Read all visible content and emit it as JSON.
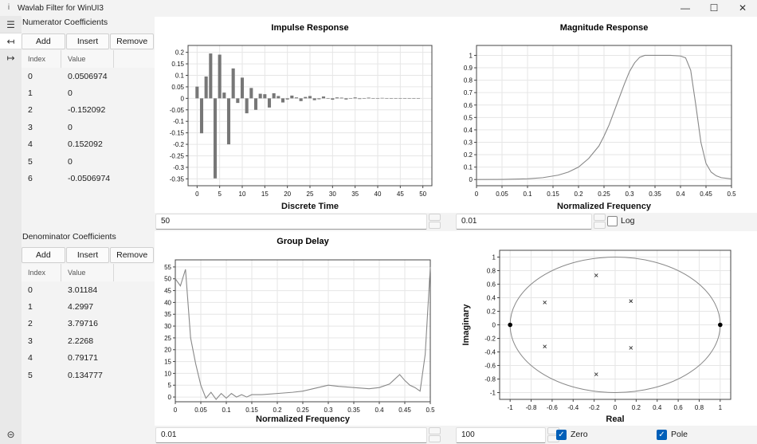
{
  "window": {
    "title": "Wavlab Filter for WinUI3",
    "controls": [
      "minimize",
      "maximize",
      "close"
    ]
  },
  "nav": {
    "items": [
      {
        "icon": "menu-icon",
        "glyph": "☰"
      },
      {
        "icon": "arrow-left-bar-icon",
        "glyph": "↤"
      },
      {
        "icon": "arrow-right-bar-icon",
        "glyph": "↦"
      }
    ],
    "bottom": {
      "icon": "link-icon",
      "glyph": "⊝"
    }
  },
  "numerator": {
    "title": "Numerator Coefficients",
    "buttons": {
      "add": "Add",
      "insert": "Insert",
      "remove": "Remove"
    },
    "columns": [
      "Index",
      "Value"
    ],
    "rows": [
      [
        "0",
        "0.0506974"
      ],
      [
        "1",
        "0"
      ],
      [
        "2",
        "-0.152092"
      ],
      [
        "3",
        "0"
      ],
      [
        "4",
        "0.152092"
      ],
      [
        "5",
        "0"
      ],
      [
        "6",
        "-0.0506974"
      ]
    ]
  },
  "denominator": {
    "title": "Denominator Coefficients",
    "buttons": {
      "add": "Add",
      "insert": "Insert",
      "remove": "Remove"
    },
    "columns": [
      "Index",
      "Value"
    ],
    "rows": [
      [
        "0",
        "3.01184"
      ],
      [
        "1",
        "4.2997"
      ],
      [
        "2",
        "3.79716"
      ],
      [
        "3",
        "2.2268"
      ],
      [
        "4",
        "0.79171"
      ],
      [
        "5",
        "0.134777"
      ]
    ]
  },
  "controls": {
    "impulse_length": "50",
    "magnitude_step": "0.01",
    "log_label": "Log",
    "log_checked": false,
    "group_step": "0.01",
    "pz_resolution": "100",
    "zero_label": "Zero",
    "zero_checked": true,
    "pole_label": "Pole",
    "pole_checked": true
  },
  "chart_data": [
    {
      "type": "bar",
      "title": "Impulse Response",
      "xlabel": "Discrete Time",
      "ylabel": "",
      "xlim": [
        -2,
        52
      ],
      "ylim": [
        -0.38,
        0.23
      ],
      "xticks": [
        0,
        5,
        10,
        15,
        20,
        25,
        30,
        35,
        40,
        45,
        50
      ],
      "yticks": [
        0.2,
        0.15,
        0.1,
        0.05,
        0,
        -0.05,
        -0.1,
        -0.15,
        -0.2,
        -0.25,
        -0.3,
        -0.35
      ],
      "x": [
        0,
        1,
        2,
        3,
        4,
        5,
        6,
        7,
        8,
        9,
        10,
        11,
        12,
        13,
        14,
        15,
        16,
        17,
        18,
        19,
        20,
        21,
        22,
        23,
        24,
        25,
        26,
        27,
        28,
        29,
        30,
        31,
        32,
        33,
        34,
        35,
        36,
        37,
        38,
        39,
        40,
        41,
        42,
        43,
        44,
        45,
        46,
        47,
        48,
        49
      ],
      "values": [
        0.051,
        -0.152,
        0.095,
        0.195,
        -0.348,
        0.19,
        0.025,
        -0.2,
        0.13,
        -0.02,
        0.09,
        -0.065,
        0.045,
        -0.05,
        0.02,
        0.018,
        -0.04,
        0.022,
        0.01,
        -0.018,
        -0.005,
        0.012,
        0.004,
        -0.012,
        0.006,
        0.01,
        -0.008,
        -0.004,
        0.008,
        -0.002,
        -0.006,
        0.004,
        0.003,
        -0.005,
        0.001,
        0.004,
        -0.003,
        -0.001,
        0.003,
        -0.001,
        -0.002,
        0.002,
        0.001,
        -0.001,
        -0.001,
        0.001,
        0.0,
        0.0,
        0.0,
        0.0
      ],
      "color": "#777777",
      "grid": true
    },
    {
      "type": "line",
      "title": "Magnitude Response",
      "xlabel": "Normalized Frequency",
      "ylabel": "",
      "xlim": [
        0,
        0.5
      ],
      "ylim": [
        -0.05,
        1.08
      ],
      "xticks": [
        0,
        0.05,
        0.1,
        0.15,
        0.2,
        0.25,
        0.3,
        0.35,
        0.4,
        0.45,
        0.5
      ],
      "yticks": [
        0,
        0.1,
        0.2,
        0.3,
        0.4,
        0.5,
        0.6,
        0.7,
        0.8,
        0.9,
        1
      ],
      "x": [
        0,
        0.05,
        0.1,
        0.13,
        0.16,
        0.18,
        0.2,
        0.22,
        0.24,
        0.25,
        0.26,
        0.27,
        0.28,
        0.29,
        0.3,
        0.31,
        0.32,
        0.33,
        0.34,
        0.36,
        0.38,
        0.4,
        0.41,
        0.42,
        0.43,
        0.44,
        0.45,
        0.46,
        0.47,
        0.48,
        0.5
      ],
      "y": [
        0,
        0.001,
        0.006,
        0.015,
        0.035,
        0.06,
        0.1,
        0.17,
        0.27,
        0.35,
        0.44,
        0.55,
        0.66,
        0.77,
        0.87,
        0.94,
        0.985,
        1.0,
        1.0,
        1.0,
        1.0,
        0.995,
        0.98,
        0.88,
        0.6,
        0.3,
        0.13,
        0.06,
        0.03,
        0.015,
        0.005
      ],
      "color": "#888888",
      "grid": true
    },
    {
      "type": "line",
      "title": "Group Delay",
      "xlabel": "Normalized Frequency",
      "ylabel": "",
      "xlim": [
        0,
        0.5
      ],
      "ylim": [
        -2,
        58
      ],
      "xticks": [
        0,
        0.05,
        0.1,
        0.15,
        0.2,
        0.25,
        0.3,
        0.35,
        0.4,
        0.45,
        0.5
      ],
      "yticks": [
        0,
        5,
        10,
        15,
        20,
        25,
        30,
        35,
        40,
        45,
        50,
        55
      ],
      "x": [
        0,
        0.01,
        0.02,
        0.03,
        0.04,
        0.05,
        0.06,
        0.07,
        0.08,
        0.09,
        0.1,
        0.11,
        0.12,
        0.13,
        0.14,
        0.15,
        0.17,
        0.2,
        0.23,
        0.25,
        0.27,
        0.29,
        0.3,
        0.32,
        0.35,
        0.38,
        0.4,
        0.42,
        0.43,
        0.44,
        0.45,
        0.46,
        0.47,
        0.48,
        0.49,
        0.5
      ],
      "y": [
        50,
        47,
        54,
        25,
        14,
        5,
        -0.5,
        2,
        -1,
        1.5,
        -0.5,
        1.5,
        0,
        1,
        0,
        1,
        1,
        1.5,
        2,
        2.5,
        3.5,
        4.5,
        5,
        4.5,
        4,
        3.5,
        4,
        5.5,
        7.5,
        9.5,
        7,
        5,
        4,
        2.5,
        18,
        55
      ],
      "color": "#888888",
      "grid": true
    },
    {
      "type": "scatter",
      "title": "",
      "xlabel": "Real",
      "ylabel": "Imaginary",
      "xlim": [
        -1.1,
        1.1
      ],
      "ylim": [
        -1.1,
        1.1
      ],
      "xticks": [
        -1,
        -0.8,
        -0.6,
        -0.4,
        -0.2,
        0,
        0.2,
        0.4,
        0.6,
        0.8,
        1
      ],
      "yticks": [
        1,
        0.8,
        0.6,
        0.4,
        0.2,
        0,
        -0.2,
        -0.4,
        -0.6,
        -0.8,
        -1
      ],
      "unit_circle": true,
      "zeros": [
        [
          -1,
          0
        ],
        [
          1,
          0
        ]
      ],
      "poles": [
        [
          -0.18,
          0.73
        ],
        [
          0.15,
          0.35
        ],
        [
          -0.67,
          0.33
        ],
        [
          -0.67,
          -0.32
        ],
        [
          0.15,
          -0.34
        ],
        [
          -0.18,
          -0.73
        ]
      ],
      "grid": true
    }
  ]
}
